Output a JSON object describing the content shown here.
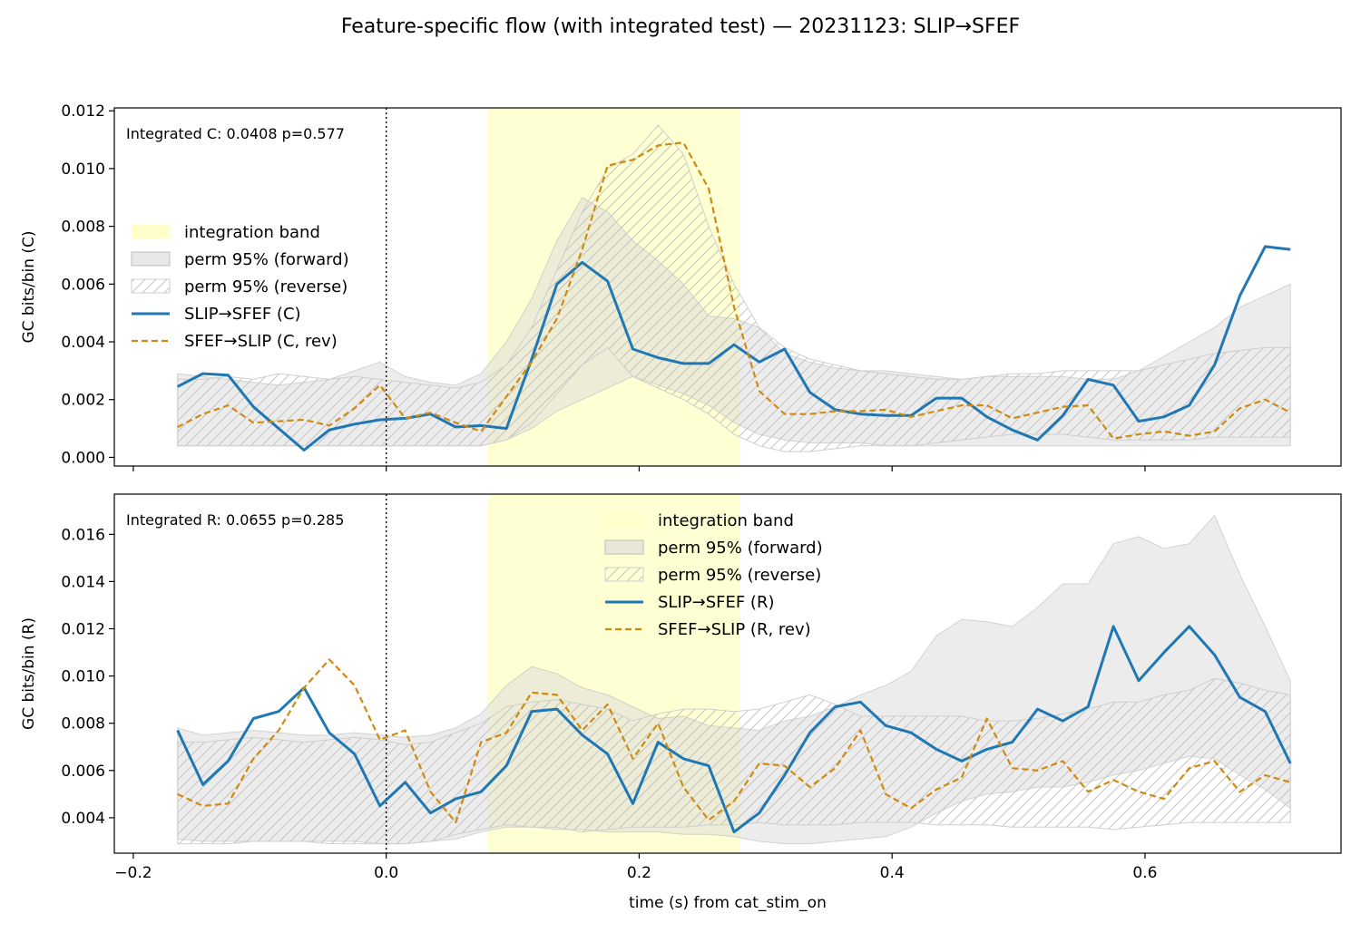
{
  "suptitle": "Feature-specific flow (with integrated test) — 20231123: SLIP→SFEF",
  "colors": {
    "forward": "#1f77b4",
    "reverse": "#d08a12",
    "band": "#ffffcc",
    "perm_forward": "#d9d9d9",
    "perm_reverse_hatch": "#c4c4c4"
  },
  "chart_data": [
    {
      "type": "line",
      "ylabel": "GC bits/bin (C)",
      "xlabel": "",
      "xlim": [
        -0.215,
        0.755
      ],
      "ylim": [
        -0.0003,
        0.0121
      ],
      "xticks": [
        -0.2,
        0.0,
        0.2,
        0.4,
        0.6
      ],
      "xtick_labels": [
        "",
        "",
        "",
        "",
        ""
      ],
      "yticks": [
        0.0,
        0.002,
        0.004,
        0.006,
        0.008,
        0.01,
        0.012
      ],
      "ytick_labels": [
        "0.000",
        "0.002",
        "0.004",
        "0.006",
        "0.008",
        "0.010",
        "0.012"
      ],
      "annotation": "Integrated C: 0.0408  p=0.577",
      "integration_band": [
        0.08,
        0.28
      ],
      "event_line_x": 0.0,
      "legend_position": "center-left",
      "legend": [
        "integration band",
        "perm 95% (forward)",
        "perm 95% (reverse)",
        "SLIP→SFEF (C)",
        "SFEF→SLIP (C, rev)"
      ],
      "x": [
        -0.165,
        -0.145,
        -0.125,
        -0.105,
        -0.085,
        -0.065,
        -0.045,
        -0.025,
        -0.005,
        0.015,
        0.035,
        0.055,
        0.075,
        0.095,
        0.115,
        0.135,
        0.155,
        0.175,
        0.195,
        0.215,
        0.235,
        0.255,
        0.275,
        0.295,
        0.315,
        0.335,
        0.355,
        0.375,
        0.395,
        0.415,
        0.435,
        0.455,
        0.475,
        0.495,
        0.515,
        0.535,
        0.555,
        0.575,
        0.595,
        0.615,
        0.635,
        0.655,
        0.675,
        0.695,
        0.715
      ],
      "perm_forward": {
        "upper": [
          0.0029,
          0.0028,
          0.0027,
          0.0026,
          0.0025,
          0.0026,
          0.0027,
          0.003,
          0.0033,
          0.0028,
          0.0026,
          0.0025,
          0.0029,
          0.004,
          0.0055,
          0.0075,
          0.009,
          0.0085,
          0.0075,
          0.0068,
          0.006,
          0.0049,
          0.0048,
          0.0045,
          0.0036,
          0.0033,
          0.0031,
          0.003,
          0.003,
          0.0029,
          0.0028,
          0.0027,
          0.0028,
          0.0028,
          0.0028,
          0.0028,
          0.0027,
          0.0027,
          0.003,
          0.0035,
          0.004,
          0.0045,
          0.0052,
          0.0056,
          0.006
        ],
        "lower": [
          0.0004,
          0.0004,
          0.0004,
          0.0004,
          0.0004,
          0.0004,
          0.0004,
          0.0004,
          0.0004,
          0.0004,
          0.0004,
          0.0004,
          0.0004,
          0.0006,
          0.001,
          0.0016,
          0.002,
          0.0024,
          0.0028,
          0.0025,
          0.0022,
          0.0018,
          0.0012,
          0.0008,
          0.0006,
          0.0005,
          0.0005,
          0.0005,
          0.0004,
          0.0004,
          0.0004,
          0.0004,
          0.0004,
          0.0004,
          0.0004,
          0.0004,
          0.0004,
          0.0004,
          0.0004,
          0.0004,
          0.0004,
          0.0004,
          0.0004,
          0.0004,
          0.0004
        ]
      },
      "perm_reverse": {
        "upper": [
          0.0027,
          0.0027,
          0.0028,
          0.0027,
          0.0029,
          0.0028,
          0.0027,
          0.0028,
          0.0027,
          0.0026,
          0.0025,
          0.0024,
          0.0026,
          0.0032,
          0.0045,
          0.0065,
          0.0085,
          0.01,
          0.0105,
          0.0115,
          0.0105,
          0.008,
          0.006,
          0.0045,
          0.0038,
          0.0034,
          0.0032,
          0.003,
          0.0029,
          0.0028,
          0.0027,
          0.0027,
          0.0028,
          0.0029,
          0.0029,
          0.003,
          0.003,
          0.003,
          0.003,
          0.0032,
          0.0034,
          0.0036,
          0.0037,
          0.0038,
          0.0038
        ],
        "lower": [
          0.0004,
          0.0004,
          0.0004,
          0.0004,
          0.0004,
          0.0004,
          0.0004,
          0.0004,
          0.0004,
          0.0004,
          0.0004,
          0.0004,
          0.0004,
          0.0006,
          0.0012,
          0.0022,
          0.0032,
          0.0038,
          0.0028,
          0.0024,
          0.002,
          0.0015,
          0.0008,
          0.0004,
          0.0002,
          0.0002,
          0.0003,
          0.0004,
          0.0004,
          0.0004,
          0.0005,
          0.0006,
          0.0007,
          0.0008,
          0.0008,
          0.0008,
          0.0007,
          0.0006,
          0.0006,
          0.0006,
          0.0006,
          0.0007,
          0.0007,
          0.0007,
          0.0007
        ]
      },
      "series": [
        {
          "name": "SLIP→SFEF (C)",
          "style": "solid",
          "values": [
            0.00245,
            0.0029,
            0.00285,
            0.00175,
            0.001,
            0.00025,
            0.00095,
            0.00115,
            0.0013,
            0.00135,
            0.0015,
            0.00105,
            0.0011,
            0.001,
            0.0034,
            0.006,
            0.00675,
            0.0061,
            0.00375,
            0.00345,
            0.00325,
            0.00325,
            0.0039,
            0.0033,
            0.00375,
            0.00225,
            0.00165,
            0.0015,
            0.00145,
            0.00145,
            0.00205,
            0.00205,
            0.0014,
            0.00095,
            0.0006,
            0.00145,
            0.0027,
            0.0025,
            0.00125,
            0.0014,
            0.0018,
            0.0032,
            0.0056,
            0.0073,
            0.0072
          ]
        },
        {
          "name": "SFEF→SLIP (C, rev)",
          "style": "dashed",
          "values": [
            0.00105,
            0.0015,
            0.0018,
            0.0012,
            0.00125,
            0.0013,
            0.0011,
            0.0017,
            0.0025,
            0.00135,
            0.00155,
            0.0012,
            0.0009,
            0.0021,
            0.0033,
            0.0048,
            0.0072,
            0.0101,
            0.0103,
            0.0108,
            0.0109,
            0.0093,
            0.0052,
            0.0023,
            0.0015,
            0.0015,
            0.0016,
            0.0016,
            0.00165,
            0.0014,
            0.0016,
            0.0018,
            0.0018,
            0.00135,
            0.00155,
            0.00175,
            0.0018,
            0.00065,
            0.0008,
            0.0009,
            0.00075,
            0.0009,
            0.0017,
            0.002,
            0.00155
          ]
        }
      ]
    },
    {
      "type": "line",
      "ylabel": "GC bits/bin (R)",
      "xlabel": "time (s) from cat_stim_on",
      "xlim": [
        -0.215,
        0.755
      ],
      "ylim": [
        0.0025,
        0.0177
      ],
      "xticks": [
        -0.2,
        0.0,
        0.2,
        0.4,
        0.6
      ],
      "xtick_labels": [
        "−0.2",
        "0.0",
        "0.2",
        "0.4",
        "0.6"
      ],
      "yticks": [
        0.004,
        0.006,
        0.008,
        0.01,
        0.012,
        0.014,
        0.016
      ],
      "ytick_labels": [
        "0.004",
        "0.006",
        "0.008",
        "0.010",
        "0.012",
        "0.014",
        "0.016"
      ],
      "annotation": "Integrated R: 0.0655  p=0.285",
      "integration_band": [
        0.08,
        0.28
      ],
      "event_line_x": 0.0,
      "legend_position": "upper-center",
      "legend": [
        "integration band",
        "perm 95% (forward)",
        "perm 95% (reverse)",
        "SLIP→SFEF (R)",
        "SFEF→SLIP (R, rev)"
      ],
      "x": [
        -0.165,
        -0.145,
        -0.125,
        -0.105,
        -0.085,
        -0.065,
        -0.045,
        -0.025,
        -0.005,
        0.015,
        0.035,
        0.055,
        0.075,
        0.095,
        0.115,
        0.135,
        0.155,
        0.175,
        0.195,
        0.215,
        0.235,
        0.255,
        0.275,
        0.295,
        0.315,
        0.335,
        0.355,
        0.375,
        0.395,
        0.415,
        0.435,
        0.455,
        0.475,
        0.495,
        0.515,
        0.535,
        0.555,
        0.575,
        0.595,
        0.615,
        0.635,
        0.655,
        0.675,
        0.695,
        0.715
      ],
      "perm_forward": {
        "upper": [
          0.0078,
          0.0075,
          0.0076,
          0.0077,
          0.0076,
          0.0075,
          0.0075,
          0.0076,
          0.0075,
          0.0074,
          0.0075,
          0.0078,
          0.0084,
          0.0096,
          0.0104,
          0.0101,
          0.0095,
          0.0092,
          0.0087,
          0.0082,
          0.0083,
          0.0079,
          0.0078,
          0.0077,
          0.0081,
          0.0083,
          0.0087,
          0.0092,
          0.0096,
          0.0102,
          0.0117,
          0.0124,
          0.0123,
          0.0121,
          0.0129,
          0.0139,
          0.0139,
          0.0156,
          0.0159,
          0.0154,
          0.0156,
          0.0168,
          0.0143,
          0.0121,
          0.0098
        ],
        "lower": [
          0.0031,
          0.003,
          0.003,
          0.003,
          0.003,
          0.003,
          0.003,
          0.003,
          0.0029,
          0.0029,
          0.003,
          0.0031,
          0.0034,
          0.0036,
          0.0036,
          0.0035,
          0.0035,
          0.0034,
          0.0034,
          0.0034,
          0.0033,
          0.0033,
          0.0032,
          0.003,
          0.0029,
          0.0029,
          0.003,
          0.0031,
          0.0032,
          0.0036,
          0.0042,
          0.0047,
          0.005,
          0.0051,
          0.0053,
          0.0053,
          0.0055,
          0.0058,
          0.006,
          0.0063,
          0.0066,
          0.0065,
          0.0058,
          0.0052,
          0.0044
        ]
      },
      "perm_reverse": {
        "upper": [
          0.0072,
          0.0072,
          0.0073,
          0.0074,
          0.0073,
          0.0072,
          0.0073,
          0.0074,
          0.0073,
          0.0071,
          0.0072,
          0.0076,
          0.008,
          0.0087,
          0.0089,
          0.009,
          0.0088,
          0.0086,
          0.0081,
          0.0084,
          0.0086,
          0.0086,
          0.0085,
          0.0086,
          0.0089,
          0.0092,
          0.0088,
          0.0083,
          0.0083,
          0.0083,
          0.0083,
          0.0083,
          0.0081,
          0.0081,
          0.0082,
          0.0084,
          0.0086,
          0.0089,
          0.0089,
          0.0092,
          0.0094,
          0.0099,
          0.0097,
          0.0094,
          0.0092
        ],
        "lower": [
          0.0029,
          0.0029,
          0.0029,
          0.003,
          0.003,
          0.003,
          0.0029,
          0.0029,
          0.0029,
          0.0029,
          0.003,
          0.0033,
          0.0035,
          0.0037,
          0.0036,
          0.0036,
          0.0034,
          0.0035,
          0.0036,
          0.0036,
          0.0036,
          0.0037,
          0.0037,
          0.0038,
          0.0037,
          0.0037,
          0.0037,
          0.0038,
          0.0038,
          0.0038,
          0.0037,
          0.0037,
          0.0037,
          0.0036,
          0.0036,
          0.0036,
          0.0036,
          0.0035,
          0.0036,
          0.0037,
          0.0038,
          0.0038,
          0.0038,
          0.0038,
          0.0038
        ]
      },
      "series": [
        {
          "name": "SLIP→SFEF (R)",
          "style": "solid",
          "values": [
            0.0077,
            0.0054,
            0.0064,
            0.0082,
            0.0085,
            0.0095,
            0.0076,
            0.0067,
            0.0045,
            0.0055,
            0.0042,
            0.0048,
            0.0051,
            0.0062,
            0.0085,
            0.0086,
            0.0075,
            0.0067,
            0.0046,
            0.0072,
            0.0065,
            0.0062,
            0.0034,
            0.0042,
            0.0058,
            0.0076,
            0.0087,
            0.0089,
            0.0079,
            0.0076,
            0.0069,
            0.0064,
            0.0069,
            0.0072,
            0.0086,
            0.0081,
            0.0087,
            0.0121,
            0.0098,
            0.011,
            0.0121,
            0.0109,
            0.0091,
            0.0085,
            0.0063
          ]
        },
        {
          "name": "SFEF→SLIP (R, rev)",
          "style": "dashed",
          "values": [
            0.005,
            0.0045,
            0.0046,
            0.0065,
            0.0077,
            0.0095,
            0.0107,
            0.0096,
            0.0073,
            0.0077,
            0.0051,
            0.0038,
            0.0072,
            0.0076,
            0.0093,
            0.0092,
            0.0077,
            0.0088,
            0.0065,
            0.008,
            0.0053,
            0.0039,
            0.0047,
            0.0063,
            0.0062,
            0.0053,
            0.0061,
            0.0077,
            0.005,
            0.0044,
            0.0052,
            0.0057,
            0.0082,
            0.0061,
            0.006,
            0.0064,
            0.0051,
            0.0056,
            0.0051,
            0.0048,
            0.0061,
            0.0064,
            0.0051,
            0.0058,
            0.0055
          ]
        }
      ]
    }
  ]
}
